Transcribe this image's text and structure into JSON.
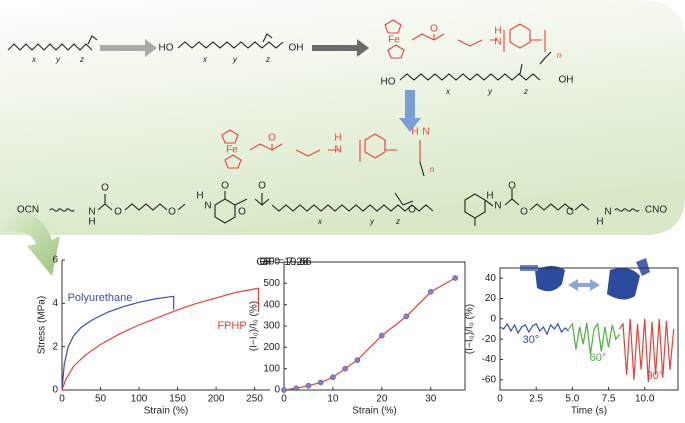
{
  "scheme": {
    "labels": [
      "x",
      "y",
      "z",
      "HO",
      "x",
      "y",
      "z",
      "OH",
      "Fe",
      "O",
      "H",
      "N",
      "n",
      "HO",
      "x",
      "y",
      "z",
      "OH",
      "Fe",
      "O",
      "H",
      "N",
      "H",
      "N",
      "n",
      "OCN",
      "H",
      "N",
      "O",
      "O",
      "O",
      "H",
      "N",
      "O",
      "O",
      "O",
      "x",
      "y",
      "z",
      "O",
      "H",
      "N",
      "O",
      "O",
      "O",
      "H",
      "N",
      "CNO"
    ]
  },
  "chart_data": [
    {
      "type": "line",
      "x_label": "Strain (%)",
      "y_label": "Stress (MPa)",
      "frame": "axes",
      "legend": "direct",
      "xlim": [
        0,
        270
      ],
      "xticks": [
        0,
        50,
        100,
        150,
        200,
        250
      ],
      "ylim": [
        0,
        6
      ],
      "yticks": [
        0,
        2,
        4,
        6
      ],
      "series": [
        {
          "name": "Polyurethane",
          "color": "#3a4fa8",
          "x": [
            0,
            3,
            8,
            15,
            25,
            40,
            60,
            80,
            100,
            120,
            140,
            145,
            145
          ],
          "values": [
            0,
            1.2,
            2.0,
            2.5,
            2.9,
            3.25,
            3.6,
            3.85,
            4.05,
            4.2,
            4.3,
            4.32,
            3.7
          ]
        },
        {
          "name": "FPHP",
          "color": "#e8413a",
          "x": [
            0,
            5,
            15,
            30,
            50,
            75,
            100,
            125,
            150,
            175,
            200,
            225,
            255,
            255
          ],
          "values": [
            0,
            0.5,
            1.1,
            1.6,
            2.1,
            2.6,
            3.0,
            3.35,
            3.7,
            4.0,
            4.25,
            4.5,
            4.7,
            3.6
          ]
        }
      ]
    },
    {
      "type": "line",
      "x_label": "Strain (%)",
      "y_label": "(I−I₀)/I₀ (%)",
      "frame": "box",
      "markers": true,
      "annotations": [
        "GF = 7.28",
        "GF = 19.66"
      ],
      "xlim": [
        0,
        37
      ],
      "xticks": [
        0,
        10,
        20,
        30
      ],
      "ylim": [
        0,
        600
      ],
      "yticks": [
        0,
        100,
        200,
        300,
        400,
        500,
        600
      ],
      "series": [
        {
          "color": "#e8413a",
          "marker_color": "#7b7fd6",
          "x": [
            0,
            2.5,
            5,
            7.5,
            10,
            12.5,
            15,
            20,
            25,
            30,
            35
          ],
          "values": [
            0,
            8,
            20,
            35,
            60,
            100,
            140,
            255,
            345,
            460,
            525
          ]
        }
      ]
    },
    {
      "type": "line",
      "x_label": "Time (s)",
      "y_label": "(I−I₀)/I₀ (%)",
      "frame": "box",
      "legend": "direct",
      "xlim": [
        0,
        12.3
      ],
      "xticks": [
        0,
        2.5,
        {
          "value": 5,
          "label": "5.0"
        },
        7.5,
        {
          "value": 10,
          "label": "10.0"
        }
      ],
      "ylim": [
        -70,
        50
      ],
      "yticks": [
        -60,
        -40,
        -20,
        0,
        20,
        40
      ],
      "series": [
        {
          "name": "30°",
          "color": "#3a4fa8",
          "x": [
            0,
            0.25,
            0.5,
            0.75,
            1,
            1.25,
            1.5,
            1.75,
            2,
            2.25,
            2.5,
            2.75,
            3,
            3.25,
            3.5,
            3.75,
            4,
            4.25,
            4.5,
            4.75
          ],
          "values": [
            -8,
            -10,
            -5,
            -12,
            -6,
            -14,
            -8,
            -6,
            -13,
            -7,
            -5,
            -12,
            -8,
            -15,
            -6,
            -10,
            -5,
            -13,
            -9,
            -12
          ]
        },
        {
          "name": "60°",
          "color": "#4caf3f",
          "x": [
            4.75,
            5,
            5.25,
            5.5,
            5.75,
            6,
            6.25,
            6.5,
            6.75,
            7,
            7.25,
            7.5,
            7.75,
            8,
            8.25
          ],
          "values": [
            -10,
            -5,
            -30,
            -8,
            -25,
            -4,
            -35,
            -10,
            -5,
            -32,
            -8,
            -28,
            -6,
            -20,
            -15
          ]
        },
        {
          "name": "90°",
          "color": "#e8413a",
          "x": [
            8.25,
            8.5,
            8.75,
            9,
            9.25,
            9.5,
            9.75,
            10,
            10.25,
            10.5,
            10.75,
            11,
            11.25,
            11.5,
            11.75,
            12
          ],
          "values": [
            -10,
            -5,
            -55,
            0,
            -60,
            -5,
            -50,
            0,
            -62,
            -3,
            -55,
            0,
            -58,
            -2,
            -50,
            -10
          ]
        }
      ]
    }
  ]
}
